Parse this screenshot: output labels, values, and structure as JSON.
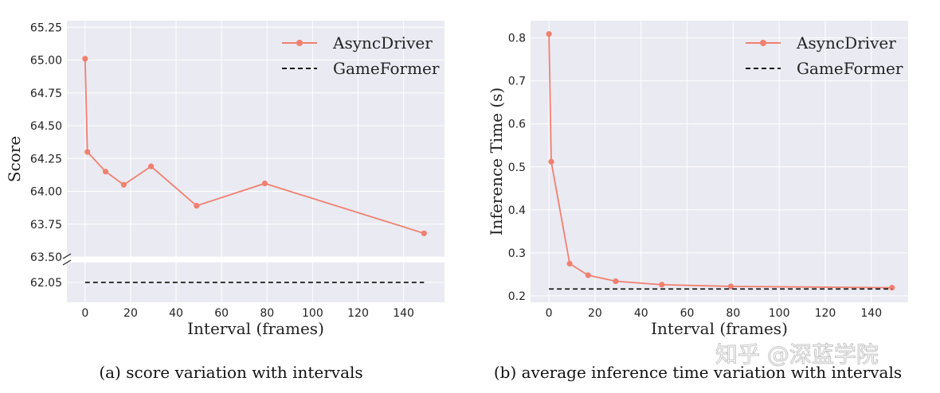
{
  "colors": {
    "line": "#f08070",
    "baseline": "#1a1a1a",
    "panel_bg": "#eaeaf2",
    "grid": "#ffffff"
  },
  "chart_data": [
    {
      "type": "line",
      "xlabel": "Interval (frames)",
      "ylabel": "Score",
      "caption": "(a) score variation with intervals",
      "xlim": [
        -8,
        158
      ],
      "xticks": [
        0,
        20,
        40,
        60,
        80,
        100,
        120,
        140
      ],
      "xtick_labels": [
        "0",
        "20",
        "40",
        "60",
        "80",
        "100",
        "120",
        "140"
      ],
      "broken_axis": true,
      "upper_ylim": [
        63.5,
        65.3
      ],
      "upper_yticks": [
        63.5,
        63.75,
        64.0,
        64.25,
        64.5,
        64.75,
        65.0,
        65.25
      ],
      "upper_ytick_labels": [
        "63.50",
        "63.75",
        "64.00",
        "64.25",
        "64.50",
        "64.75",
        "65.00",
        "65.25"
      ],
      "lower_ylim": [
        61.9,
        62.2
      ],
      "lower_yticks": [
        62.05
      ],
      "lower_ytick_labels": [
        "62.05"
      ],
      "series": [
        {
          "name": "AsyncDriver",
          "style": "line-marker",
          "x": [
            0,
            1,
            9,
            17,
            29,
            49,
            79,
            149
          ],
          "y": [
            65.01,
            64.3,
            64.15,
            64.05,
            64.19,
            63.89,
            64.06,
            63.68
          ]
        },
        {
          "name": "GameFormer",
          "style": "dashed",
          "x": [
            0,
            149
          ],
          "y": [
            62.05,
            62.05
          ]
        }
      ],
      "legend": {
        "position": "top-right",
        "entries": [
          "AsyncDriver",
          "GameFormer"
        ]
      }
    },
    {
      "type": "line",
      "xlabel": "Interval (frames)",
      "ylabel": "Inference Time (s)",
      "caption": "(b) average inference time variation with intervals",
      "xlim": [
        -8,
        156
      ],
      "ylim": [
        0.185,
        0.84
      ],
      "xticks": [
        0,
        20,
        40,
        60,
        80,
        100,
        120,
        140
      ],
      "xtick_labels": [
        "0",
        "20",
        "40",
        "60",
        "80",
        "100",
        "120",
        "140"
      ],
      "yticks": [
        0.2,
        0.3,
        0.4,
        0.5,
        0.6,
        0.7,
        0.8
      ],
      "ytick_labels": [
        "0.2",
        "0.3",
        "0.4",
        "0.5",
        "0.6",
        "0.7",
        "0.8"
      ],
      "series": [
        {
          "name": "AsyncDriver",
          "style": "line-marker",
          "x": [
            0,
            1,
            9,
            17,
            29,
            49,
            79,
            149
          ],
          "y": [
            0.809,
            0.512,
            0.275,
            0.248,
            0.234,
            0.226,
            0.222,
            0.219
          ]
        },
        {
          "name": "GameFormer",
          "style": "dashed",
          "x": [
            0,
            149
          ],
          "y": [
            0.216,
            0.216
          ]
        }
      ],
      "legend": {
        "position": "top-right",
        "entries": [
          "AsyncDriver",
          "GameFormer"
        ]
      }
    }
  ],
  "watermark": "知乎 @深蓝学院"
}
